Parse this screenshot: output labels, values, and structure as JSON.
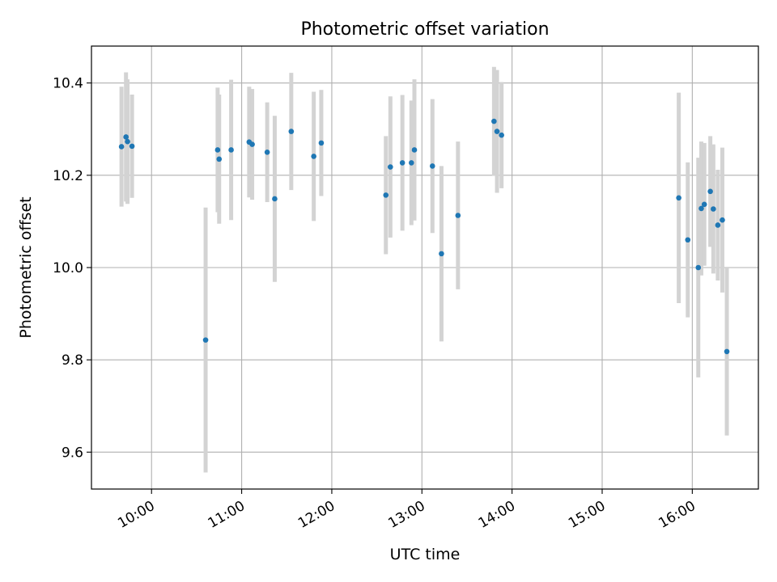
{
  "chart_data": {
    "type": "scatter",
    "title": "Photometric offset variation",
    "xlabel": "UTC time",
    "ylabel": "Photometric offset",
    "xlim": [
      "09:20",
      "16:44"
    ],
    "ylim": [
      9.52,
      10.48
    ],
    "grid": true,
    "legend": "none",
    "colors": {
      "point": "#1f77b4",
      "errorbar": "#d3d3d3",
      "grid": "#b0b0b0"
    },
    "x_ticks": [
      "10:00",
      "11:00",
      "12:00",
      "13:00",
      "14:00",
      "15:00",
      "16:00"
    ],
    "y_ticks": [
      "9.6",
      "9.8",
      "10.0",
      "10.2",
      "10.4"
    ],
    "points": [
      {
        "x": "09:40",
        "y": 10.262,
        "err": 0.13
      },
      {
        "x": "09:43",
        "y": 10.283,
        "err": 0.14
      },
      {
        "x": "09:44",
        "y": 10.273,
        "err": 0.135
      },
      {
        "x": "09:47",
        "y": 10.263,
        "err": 0.112
      },
      {
        "x": "10:36",
        "y": 9.843,
        "err": 0.287
      },
      {
        "x": "10:44",
        "y": 10.255,
        "err": 0.135
      },
      {
        "x": "10:45",
        "y": 10.235,
        "err": 0.14
      },
      {
        "x": "10:53",
        "y": 10.255,
        "err": 0.152
      },
      {
        "x": "11:05",
        "y": 10.272,
        "err": 0.12
      },
      {
        "x": "11:07",
        "y": 10.267,
        "err": 0.12
      },
      {
        "x": "11:17",
        "y": 10.25,
        "err": 0.108
      },
      {
        "x": "11:22",
        "y": 10.149,
        "err": 0.18
      },
      {
        "x": "11:33",
        "y": 10.295,
        "err": 0.127
      },
      {
        "x": "11:48",
        "y": 10.241,
        "err": 0.14
      },
      {
        "x": "11:53",
        "y": 10.27,
        "err": 0.115
      },
      {
        "x": "12:36",
        "y": 10.157,
        "err": 0.128
      },
      {
        "x": "12:39",
        "y": 10.218,
        "err": 0.153
      },
      {
        "x": "12:47",
        "y": 10.227,
        "err": 0.147
      },
      {
        "x": "12:53",
        "y": 10.227,
        "err": 0.135
      },
      {
        "x": "12:55",
        "y": 10.255,
        "err": 0.153
      },
      {
        "x": "13:07",
        "y": 10.22,
        "err": 0.145
      },
      {
        "x": "13:13",
        "y": 10.03,
        "err": 0.19
      },
      {
        "x": "13:24",
        "y": 10.113,
        "err": 0.16
      },
      {
        "x": "13:48",
        "y": 10.317,
        "err": 0.118
      },
      {
        "x": "13:50",
        "y": 10.295,
        "err": 0.133
      },
      {
        "x": "13:53",
        "y": 10.287,
        "err": 0.115
      },
      {
        "x": "15:51",
        "y": 10.151,
        "err": 0.228
      },
      {
        "x": "15:57",
        "y": 10.06,
        "err": 0.168
      },
      {
        "x": "16:04",
        "y": 10.0,
        "err": 0.238
      },
      {
        "x": "16:06",
        "y": 10.128,
        "err": 0.145
      },
      {
        "x": "16:08",
        "y": 10.137,
        "err": 0.133
      },
      {
        "x": "16:12",
        "y": 10.165,
        "err": 0.12
      },
      {
        "x": "16:14",
        "y": 10.127,
        "err": 0.14
      },
      {
        "x": "16:17",
        "y": 10.092,
        "err": 0.12
      },
      {
        "x": "16:20",
        "y": 10.103,
        "err": 0.157
      },
      {
        "x": "16:23",
        "y": 9.818,
        "err": 0.182
      }
    ]
  }
}
